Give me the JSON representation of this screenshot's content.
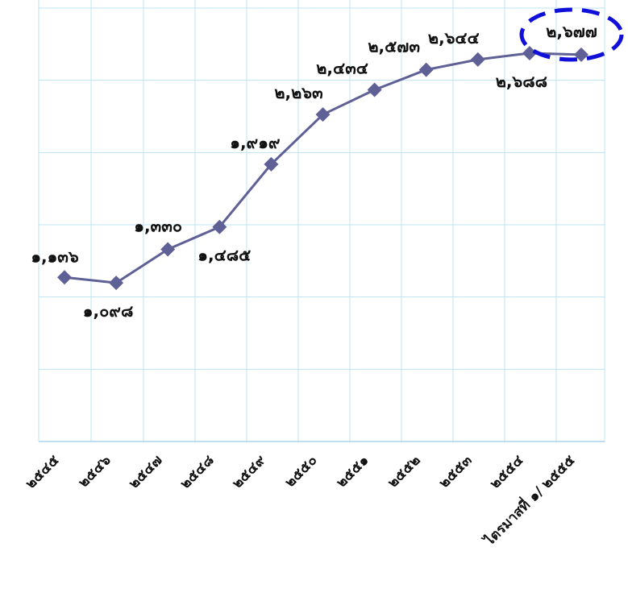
{
  "chart_data": {
    "type": "line",
    "categories": [
      "๒๕๔๕",
      "๒๕๔๖",
      "๒๕๔๗",
      "๒๕๔๘",
      "๒๕๔๙",
      "๒๕๕๐",
      "๒๕๕๑",
      "๒๕๕๒",
      "๒๕๕๓",
      "๒๕๕๔",
      "ไตรมาสที่ ๑/ ๒๕๕๕"
    ],
    "series": [
      {
        "values": [
          1136,
          1098,
          1330,
          1485,
          1919,
          2263,
          2434,
          2573,
          2644,
          2688,
          2677
        ],
        "labels": [
          "๑,๑๓๖",
          "๑,๐๙๘",
          "๑,๓๓๐",
          "๑,๔๘๕",
          "๑,๙๑๙",
          "๒,๒๖๓",
          "๒,๔๓๔",
          "๒,๕๗๓",
          "๒,๖๔๔",
          "๒,๖๘๘",
          "๒,๖๗๗"
        ],
        "label_positions": [
          "above",
          "below",
          "above",
          "below",
          "above",
          "above",
          "above",
          "above",
          "above",
          "below",
          "above"
        ]
      }
    ],
    "ylim": [
      0,
      3000
    ],
    "grid": true,
    "legend": "none",
    "highlight": {
      "index": 10,
      "shape": "dashed-ellipse"
    },
    "colors": {
      "line": "#5f6196",
      "marker": "#5f6196",
      "grid": "#bfe3f3",
      "highlight": "#1010d8",
      "axis": "#a8d2ec"
    }
  }
}
